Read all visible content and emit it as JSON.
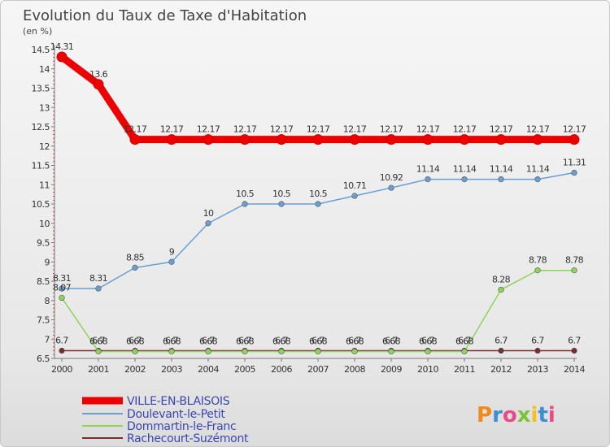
{
  "chart_data": {
    "type": "line",
    "title": "Evolution du Taux de Taxe d'Habitation",
    "subtitle": "(en %)",
    "x": [
      "2000",
      "2001",
      "2002",
      "2003",
      "2004",
      "2005",
      "2006",
      "2007",
      "2008",
      "2009",
      "2010",
      "2011",
      "2012",
      "2013",
      "2014"
    ],
    "ylim": [
      6.5,
      14.5
    ],
    "yticks": [
      "6.5",
      "7",
      "7.5",
      "8",
      "8.5",
      "9",
      "9.5",
      "10",
      "10.5",
      "11",
      "11.5",
      "12",
      "12.5",
      "13",
      "13.5",
      "14",
      "14.5"
    ],
    "grid": false,
    "legend_position": "bottom-left",
    "series": [
      {
        "name": "VILLE-EN-BLAISOIS",
        "color": "#ee0000",
        "values": [
          14.31,
          13.6,
          12.17,
          12.17,
          12.17,
          12.17,
          12.17,
          12.17,
          12.17,
          12.17,
          12.17,
          12.17,
          12.17,
          12.17,
          12.17
        ],
        "labels": [
          "14.31",
          "13.6",
          "12.17",
          "12.17",
          "12.17",
          "12.17",
          "12.17",
          "12.17",
          "12.17",
          "12.17",
          "12.17",
          "12.17",
          "12.17",
          "12.17",
          "12.17"
        ]
      },
      {
        "name": "Doulevant-le-Petit",
        "color": "#6a9fd4",
        "values": [
          8.31,
          8.31,
          8.85,
          9,
          10,
          10.5,
          10.5,
          10.5,
          10.71,
          10.92,
          11.14,
          11.14,
          11.14,
          11.14,
          11.31
        ],
        "labels": [
          "8.31",
          "8.31",
          "8.85",
          "9",
          "10",
          "10.5",
          "10.5",
          "10.5",
          "10.71",
          "10.92",
          "11.14",
          "11.14",
          "11.14",
          "11.14",
          "11.31"
        ]
      },
      {
        "name": "Dommartin-le-Franc",
        "color": "#8fd45a",
        "values": [
          8.07,
          6.68,
          6.68,
          6.68,
          6.68,
          6.68,
          6.68,
          6.68,
          6.68,
          6.68,
          6.68,
          6.68,
          8.28,
          8.78,
          8.78
        ],
        "labels": [
          "8.07",
          "6.68",
          "6.68",
          "6.68",
          "6.68",
          "6.68",
          "6.68",
          "6.68",
          "6.68",
          "6.68",
          "6.68",
          "6.68",
          "8.28",
          "8.78",
          "8.78"
        ]
      },
      {
        "name": "Rachecourt-Suzémont",
        "color": "#7a2d2d",
        "values": [
          6.7,
          6.7,
          6.7,
          6.7,
          6.7,
          6.7,
          6.7,
          6.7,
          6.7,
          6.7,
          6.7,
          6.7,
          6.7,
          6.7,
          6.7
        ],
        "labels": [
          "6.7",
          "6.7",
          "6.7",
          "6.7",
          "6.7",
          "6.7",
          "6.7",
          "6.7",
          "6.7",
          "6.7",
          "6.7",
          "6.7",
          "6.7",
          "6.7",
          "6.7"
        ]
      }
    ]
  },
  "logo": {
    "text": "Proxiti"
  }
}
